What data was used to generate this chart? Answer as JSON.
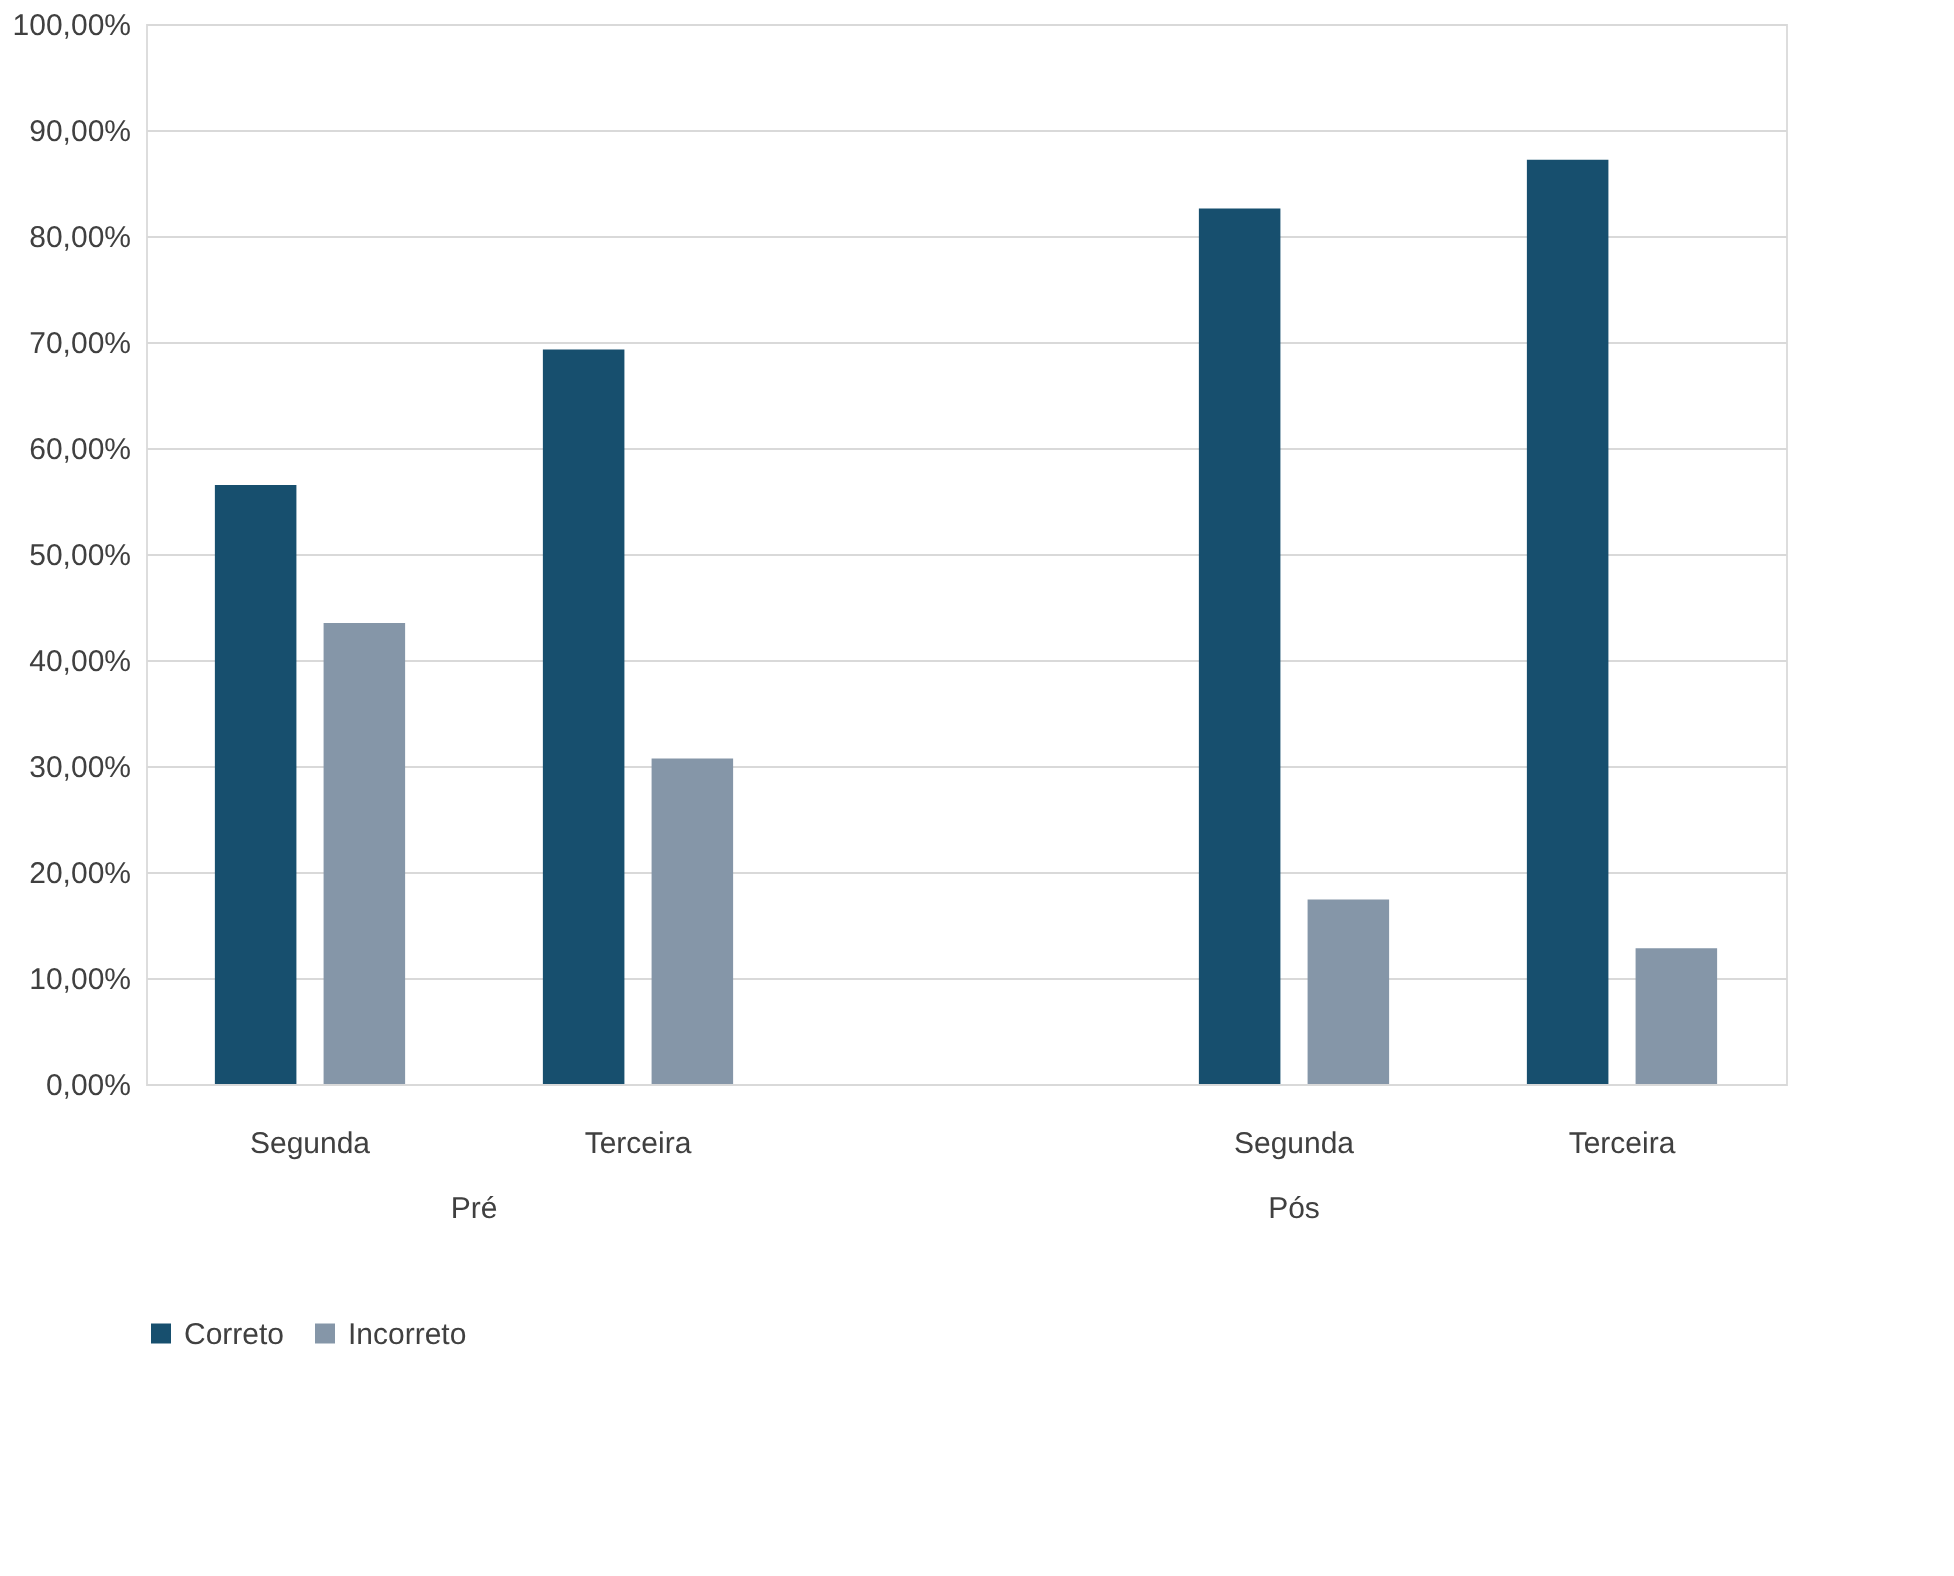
{
  "chart_data": {
    "type": "bar",
    "categories": [
      "Segunda",
      "Terceira",
      null,
      "Segunda",
      "Terceira"
    ],
    "series": [
      {
        "name": "Correto",
        "color": "#174f6e",
        "values": [
          56.5,
          69.3,
          null,
          82.6,
          87.2
        ]
      },
      {
        "name": "Incorreto",
        "color": "#8596a8",
        "values": [
          43.5,
          30.7,
          null,
          17.4,
          12.8
        ]
      }
    ],
    "ylim": [
      0,
      100
    ],
    "yticks": [
      {
        "value": 0,
        "label": "0,00%"
      },
      {
        "value": 10,
        "label": "10,00%"
      },
      {
        "value": 20,
        "label": "20,00%"
      },
      {
        "value": 30,
        "label": "30,00%"
      },
      {
        "value": 40,
        "label": "40,00%"
      },
      {
        "value": 50,
        "label": "50,00%"
      },
      {
        "value": 60,
        "label": "60,00%"
      },
      {
        "value": 70,
        "label": "70,00%"
      },
      {
        "value": 80,
        "label": "80,00%"
      },
      {
        "value": 90,
        "label": "90,00%"
      },
      {
        "value": 100,
        "label": "100,00%"
      }
    ],
    "annotations": [
      "Pré",
      "Pós"
    ],
    "grid": "y",
    "legend": "bottom"
  }
}
